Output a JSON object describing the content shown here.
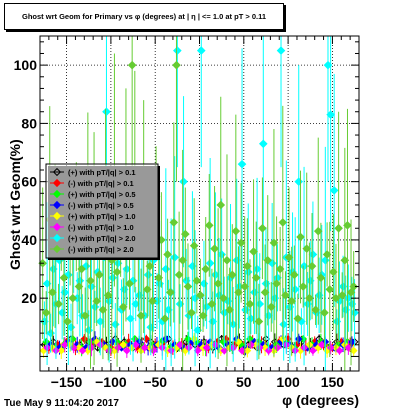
{
  "title": "Ghost wrt Geom for Primary vs φ (degrees) at | η | <= 1.0 at pT > 0.11",
  "timestamp": "Tue May  9 11:04:20 2017",
  "colors": {
    "gt_0.1": "#000000",
    "gt_0.1b": "#ff0000",
    "gt_0.5": "#00ff00",
    "gt_0.5b": "#0000ff",
    "gt_1.0": "#ffff00",
    "gt_2.0": "#ff00ff",
    "gt_2.0c": "#00ffff",
    "gt_2.0g": "#66cc33"
  },
  "chart_data": {
    "type": "scatter",
    "title": "Ghost wrt Geom for Primary vs φ (degrees) at | η | <= 1.0 at pT > 0.11",
    "xlabel": "φ (degrees)",
    "ylabel": "Ghost wrt Geom(%)",
    "xlim": [
      -180,
      180
    ],
    "ylim": [
      -5,
      110
    ],
    "x_ticks": [
      -150,
      -100,
      -50,
      0,
      50,
      100,
      150
    ],
    "y_ticks": [
      20,
      40,
      60,
      80,
      100
    ],
    "grid": true,
    "legend_position": "left-middle",
    "series": [
      {
        "name": "(+) with pT/|q| > 0.1",
        "marker": "diamond-open",
        "color": "#000000",
        "x": [
          -175,
          -165,
          -155,
          -145,
          -135,
          -125,
          -115,
          -105,
          -95,
          -85,
          -75,
          -65,
          -55,
          -45,
          -35,
          -25,
          -15,
          -5,
          5,
          15,
          25,
          35,
          45,
          55,
          65,
          75,
          85,
          95,
          105,
          115,
          125,
          135,
          145,
          155,
          165,
          175
        ],
        "y": [
          4,
          5,
          3,
          6,
          4,
          5,
          3,
          4,
          6,
          5,
          3,
          4,
          5,
          4,
          6,
          3,
          5,
          4,
          5,
          3,
          6,
          4,
          5,
          4,
          3,
          6,
          5,
          4,
          3,
          5,
          4,
          6,
          3,
          5,
          4,
          5
        ]
      },
      {
        "name": "(-) with pT/|q| > 0.1",
        "marker": "diamond",
        "color": "#ff0000",
        "x": [
          -170,
          -160,
          -150,
          -140,
          -130,
          -120,
          -110,
          -100,
          -90,
          -80,
          -70,
          -60,
          -50,
          -40,
          -30,
          -20,
          -10,
          0,
          10,
          20,
          30,
          40,
          50,
          60,
          70,
          80,
          90,
          100,
          110,
          120,
          130,
          140,
          150,
          160,
          170
        ],
        "y": [
          3,
          4,
          5,
          3,
          6,
          4,
          5,
          3,
          4,
          5,
          3,
          6,
          4,
          5,
          3,
          4,
          5,
          4,
          3,
          5,
          6,
          4,
          3,
          5,
          4,
          3,
          5,
          6,
          4,
          3,
          5,
          4,
          3,
          5,
          4
        ]
      },
      {
        "name": "(+) with pT/|q| > 0.5",
        "marker": "diamond",
        "color": "#00ff00",
        "x": [
          -173,
          -163,
          -153,
          -143,
          -133,
          -123,
          -113,
          -103,
          -93,
          -83,
          -73,
          -63,
          -53,
          -43,
          -33,
          -23,
          -13,
          -3,
          7,
          17,
          27,
          37,
          47,
          57,
          67,
          77,
          87,
          97,
          107,
          117,
          127,
          137,
          147,
          157,
          167
        ],
        "y": [
          5,
          3,
          4,
          6,
          3,
          5,
          4,
          3,
          5,
          4,
          6,
          3,
          4,
          5,
          3,
          4,
          6,
          5,
          3,
          4,
          5,
          3,
          4,
          6,
          5,
          3,
          4,
          5,
          3,
          6,
          4,
          5,
          3,
          4,
          5
        ]
      },
      {
        "name": "(-) with pT/|q| > 0.5",
        "marker": "diamond",
        "color": "#0000ff",
        "x": [
          -168,
          -158,
          -148,
          -138,
          -128,
          -118,
          -108,
          -98,
          -88,
          -78,
          -68,
          -58,
          -48,
          -38,
          -28,
          -18,
          -8,
          2,
          12,
          22,
          32,
          42,
          52,
          62,
          72,
          82,
          92,
          102,
          112,
          122,
          132,
          142,
          152,
          162,
          172
        ],
        "y": [
          4,
          3,
          5,
          4,
          3,
          6,
          4,
          5,
          3,
          4,
          5,
          3,
          4,
          6,
          4,
          3,
          5,
          4,
          5,
          3,
          4,
          6,
          3,
          5,
          4,
          3,
          5,
          4,
          6,
          3,
          4,
          5,
          3,
          4,
          5
        ]
      },
      {
        "name": "(+) with pT/|q| > 1.0",
        "marker": "diamond",
        "color": "#ffff00",
        "x": [
          -176,
          -166,
          -156,
          -146,
          -136,
          -126,
          -116,
          -106,
          -96,
          -86,
          -76,
          -66,
          -56,
          -46,
          -36,
          -26,
          -16,
          -6,
          4,
          14,
          24,
          34,
          44,
          54,
          64,
          74,
          84,
          94,
          104,
          114,
          124,
          134,
          144,
          154,
          164,
          174
        ],
        "y": [
          2,
          3,
          2,
          4,
          3,
          2,
          5,
          3,
          2,
          4,
          3,
          2,
          3,
          4,
          2,
          3,
          2,
          6,
          3,
          4,
          2,
          3,
          5,
          2,
          4,
          3,
          2,
          6,
          3,
          2,
          4,
          3,
          2,
          3,
          4,
          2
        ]
      },
      {
        "name": "(-) with pT/|q| > 1.0",
        "marker": "diamond",
        "color": "#ff00ff",
        "x": [
          -172,
          -162,
          -152,
          -142,
          -132,
          -122,
          -112,
          -102,
          -92,
          -82,
          -72,
          -62,
          -52,
          -42,
          -32,
          -22,
          -12,
          -2,
          8,
          18,
          28,
          38,
          48,
          58,
          68,
          78,
          88,
          98,
          108,
          118,
          128,
          138,
          148,
          158,
          168
        ],
        "y": [
          3,
          2,
          4,
          3,
          2,
          3,
          4,
          2,
          3,
          2,
          4,
          3,
          2,
          3,
          2,
          4,
          3,
          2,
          3,
          4,
          2,
          3,
          2,
          4,
          3,
          2,
          3,
          4,
          2,
          3,
          2,
          4,
          3,
          2,
          3
        ]
      },
      {
        "name": "(+) with pT/|q| > 2.0",
        "marker": "diamond",
        "color": "#00ffff",
        "x": [
          -175,
          -172,
          -168,
          -165,
          -162,
          -158,
          -155,
          -152,
          -148,
          -145,
          -142,
          -138,
          -135,
          -132,
          -128,
          -125,
          -122,
          -118,
          -115,
          -112,
          -108,
          -105,
          -102,
          -98,
          -95,
          -92,
          -88,
          -85,
          -82,
          -78,
          -75,
          -72,
          -68,
          -65,
          -62,
          -58,
          -55,
          -52,
          -48,
          -45,
          -42,
          -38,
          -35,
          -32,
          -28,
          -25,
          -22,
          -18,
          -15,
          -12,
          -8,
          -5,
          -2,
          2,
          5,
          8,
          12,
          15,
          18,
          22,
          25,
          28,
          32,
          35,
          38,
          42,
          45,
          48,
          52,
          55,
          58,
          62,
          65,
          68,
          72,
          75,
          78,
          82,
          85,
          88,
          92,
          95,
          98,
          102,
          105,
          108,
          112,
          115,
          118,
          122,
          125,
          128,
          132,
          135,
          138,
          142,
          145,
          148,
          152,
          155,
          158,
          162,
          165,
          168,
          172,
          175
        ],
        "y": [
          12,
          25,
          8,
          30,
          18,
          33,
          15,
          22,
          28,
          10,
          35,
          20,
          26,
          14,
          31,
          9,
          24,
          17,
          29,
          12,
          34,
          84,
          19,
          27,
          11,
          32,
          16,
          23,
          30,
          13,
          26,
          18,
          21,
          35,
          14,
          28,
          10,
          33,
          19,
          25,
          12,
          30,
          16,
          22,
          34,
          105,
          18,
          60,
          26,
          14,
          31,
          20,
          9,
          105,
          25,
          17,
          32,
          12,
          28,
          21,
          35,
          15,
          19,
          27,
          11,
          33,
          24,
          66,
          16,
          29,
          13,
          22,
          30,
          18,
          73,
          25,
          14,
          32,
          20,
          27,
          105,
          11,
          34,
          17,
          29,
          23,
          60,
          12,
          31,
          18,
          26,
          35,
          15,
          21,
          28,
          33,
          100,
          83,
          57,
          12,
          19,
          24,
          16,
          20,
          18,
          15
        ]
      },
      {
        "name": "(-) with pT/|q| > 2.0",
        "marker": "diamond",
        "color": "#66cc33",
        "x": [
          -177,
          -173,
          -169,
          -166,
          -163,
          -159,
          -156,
          -153,
          -149,
          -146,
          -143,
          -139,
          -136,
          -133,
          -129,
          -126,
          -123,
          -119,
          -116,
          -113,
          -109,
          -106,
          -103,
          -99,
          -96,
          -93,
          -89,
          -86,
          -83,
          -79,
          -76,
          -73,
          -69,
          -66,
          -63,
          -59,
          -56,
          -53,
          -49,
          -46,
          -43,
          -39,
          -36,
          -33,
          -29,
          -26,
          -23,
          -19,
          -16,
          -13,
          -9,
          -6,
          -3,
          1,
          4,
          7,
          11,
          14,
          17,
          21,
          24,
          27,
          31,
          34,
          37,
          41,
          44,
          47,
          51,
          54,
          57,
          61,
          64,
          67,
          71,
          74,
          77,
          81,
          84,
          87,
          91,
          94,
          97,
          101,
          104,
          107,
          111,
          114,
          117,
          121,
          124,
          127,
          131,
          134,
          137,
          141,
          144,
          147,
          151,
          154,
          157,
          161,
          164,
          167,
          171,
          174
        ],
        "y": [
          32,
          15,
          47,
          22,
          38,
          18,
          42,
          27,
          12,
          35,
          20,
          48,
          24,
          30,
          14,
          44,
          26,
          37,
          19,
          28,
          16,
          45,
          21,
          33,
          64,
          29,
          40,
          17,
          52,
          25,
          100,
          60,
          36,
          14,
          48,
          23,
          31,
          19,
          55,
          27,
          40,
          13,
          35,
          22,
          46,
          100,
          28,
          33,
          42,
          24,
          15,
          38,
          26,
          21,
          14,
          30,
          45,
          18,
          37,
          25,
          52,
          20,
          33,
          16,
          28,
          43,
          22,
          39,
          24,
          31,
          18,
          36,
          27,
          12,
          44,
          22,
          33,
          17,
          39,
          25,
          30,
          46,
          21,
          34,
          19,
          28,
          13,
          41,
          24,
          37,
          20,
          31,
          16,
          43,
          27,
          15,
          35,
          23,
          29,
          20,
          44,
          21,
          33,
          45,
          22,
          24
        ]
      }
    ]
  }
}
